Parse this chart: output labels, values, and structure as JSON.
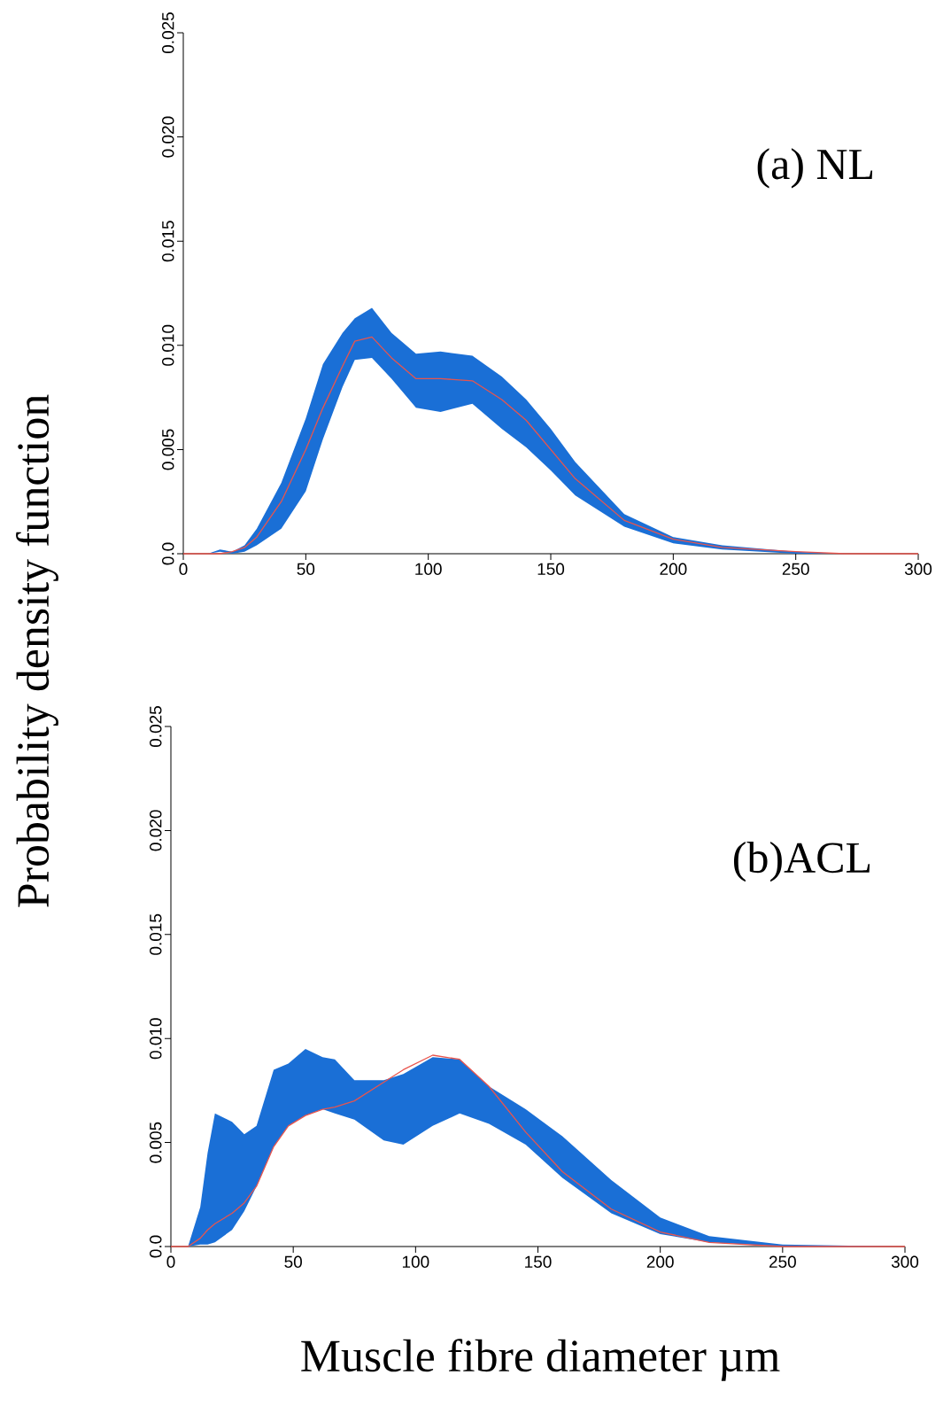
{
  "chart_data": [
    {
      "type": "line",
      "ylabel": "Probability density function",
      "annotations": [
        "(a) NL"
      ],
      "x": [
        0,
        10,
        15,
        20,
        25,
        30,
        40,
        50,
        57,
        65,
        70,
        77,
        85,
        95,
        105,
        118,
        130,
        140,
        150,
        160,
        180,
        200,
        220,
        250,
        270,
        300
      ],
      "series": [
        {
          "color": "#e8554e",
          "values": [
            0,
            0,
            0,
            0.0001,
            0.0003,
            0.0008,
            0.0025,
            0.005,
            0.007,
            0.009,
            0.0102,
            0.0104,
            0.0094,
            0.0084,
            0.0084,
            0.0083,
            0.0074,
            0.0064,
            0.005,
            0.0036,
            0.0016,
            0.0007,
            0.0003,
            0.0001,
            0,
            0
          ],
          "lower": [
            0,
            0,
            0.0001,
            0,
            0.0001,
            0.0004,
            0.0012,
            0.003,
            0.0055,
            0.008,
            0.0093,
            0.0094,
            0.0084,
            0.007,
            0.0068,
            0.0072,
            0.006,
            0.0051,
            0.004,
            0.0028,
            0.0013,
            0.0005,
            0.0002,
            0,
            0,
            0
          ],
          "upper": [
            0,
            0,
            0.0002,
            0.0001,
            0.0004,
            0.0012,
            0.0034,
            0.0065,
            0.0091,
            0.0106,
            0.0113,
            0.0118,
            0.0106,
            0.0096,
            0.0097,
            0.0095,
            0.0085,
            0.0074,
            0.006,
            0.0044,
            0.0019,
            0.0008,
            0.0004,
            0.0001,
            0,
            0
          ]
        }
      ],
      "xlim": [
        0,
        300
      ],
      "xticks": [
        0,
        50,
        100,
        150,
        200,
        250,
        300
      ],
      "ylim": [
        0,
        0.025
      ],
      "yticks": [
        {
          "value": 0,
          "label": "0.0"
        },
        0.005,
        {
          "value": 0.01,
          "label": "0.010"
        },
        0.015,
        {
          "value": 0.02,
          "label": "0.020"
        },
        0.025
      ],
      "grid": false,
      "marker": "none",
      "line_style": "solid"
    },
    {
      "type": "line",
      "xlabel": "Muscle fibre diameter µm",
      "annotations": [
        "(b)ACL"
      ],
      "x": [
        0,
        7,
        12,
        15,
        18,
        25,
        30,
        35,
        42,
        48,
        55,
        62,
        67,
        75,
        87,
        95,
        107,
        118,
        130,
        145,
        160,
        180,
        200,
        220,
        250,
        300
      ],
      "series": [
        {
          "color": "#e8554e",
          "values": [
            0,
            0,
            0.0004,
            0.0008,
            0.0011,
            0.0016,
            0.0021,
            0.0029,
            0.0048,
            0.0058,
            0.0063,
            0.0066,
            0.0067,
            0.007,
            0.0079,
            0.0085,
            0.0092,
            0.009,
            0.0077,
            0.0055,
            0.0036,
            0.0018,
            0.0007,
            0.0002,
            0,
            0
          ],
          "lower": [
            0,
            0,
            0.0001,
            0.0001,
            0.0002,
            0.0008,
            0.0017,
            0.0029,
            0.0048,
            0.0058,
            0.0063,
            0.0066,
            0.0064,
            0.0061,
            0.0051,
            0.0049,
            0.0058,
            0.0064,
            0.0059,
            0.0049,
            0.0033,
            0.0016,
            0.0006,
            0.0002,
            0,
            0
          ],
          "upper": [
            0,
            0,
            0.0019,
            0.0045,
            0.0064,
            0.006,
            0.0054,
            0.0058,
            0.0085,
            0.0088,
            0.0095,
            0.0091,
            0.009,
            0.008,
            0.008,
            0.0083,
            0.0091,
            0.009,
            0.0077,
            0.0066,
            0.0053,
            0.0032,
            0.0014,
            0.0005,
            0.0001,
            0
          ]
        }
      ],
      "xlim": [
        0,
        300
      ],
      "xticks": [
        0,
        50,
        100,
        150,
        200,
        250,
        300
      ],
      "ylim": [
        0,
        0.025
      ],
      "yticks": [
        {
          "value": 0,
          "label": "0.0"
        },
        0.005,
        {
          "value": 0.01,
          "label": "0.010"
        },
        0.015,
        {
          "value": 0.02,
          "label": "0.020"
        },
        0.025
      ],
      "grid": false,
      "marker": "none",
      "line_style": "solid"
    }
  ]
}
